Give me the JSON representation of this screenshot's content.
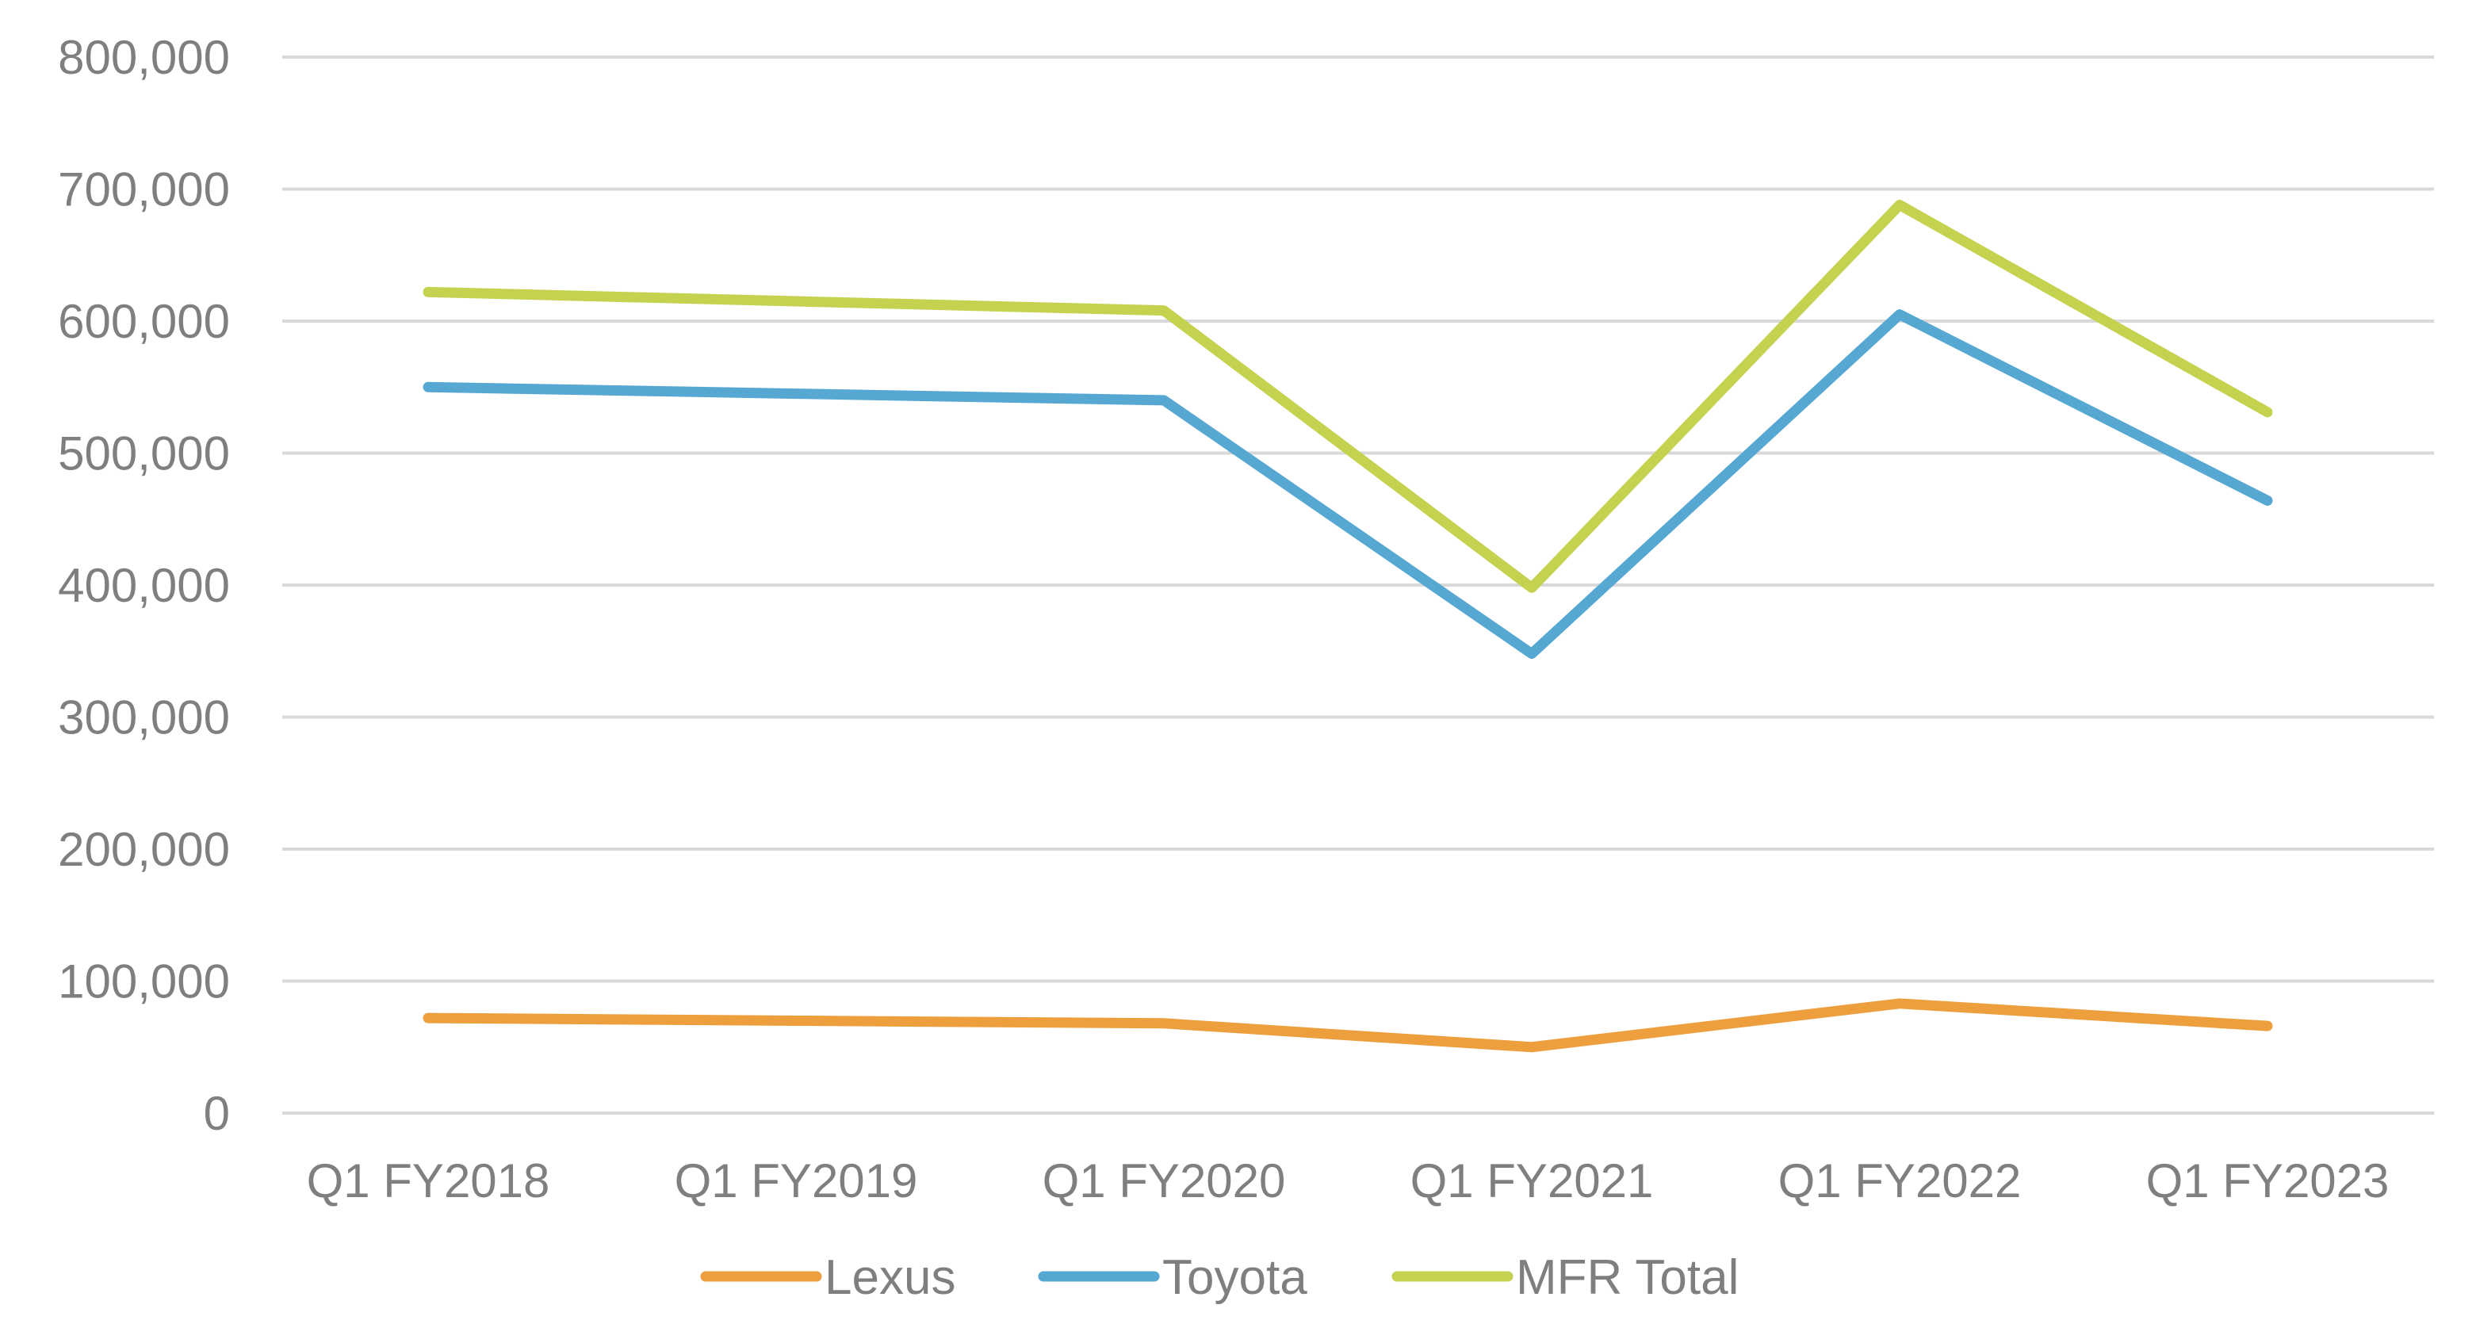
{
  "chart_data": {
    "type": "line",
    "title": "",
    "xlabel": "",
    "ylabel": "",
    "categories": [
      "Q1 FY2018",
      "Q1 FY2019",
      "Q1 FY2020",
      "Q1 FY2021",
      "Q1 FY2022",
      "Q1 FY2023"
    ],
    "ylim": [
      0,
      800000
    ],
    "yticks": [
      0,
      100000,
      200000,
      300000,
      400000,
      500000,
      600000,
      700000,
      800000
    ],
    "ytick_labels": [
      "0",
      "100,000",
      "200,000",
      "300,000",
      "400,000",
      "500,000",
      "600,000",
      "700,000",
      "800,000"
    ],
    "grid": true,
    "legend_position": "bottom",
    "series": [
      {
        "name": "Lexus",
        "color": "#ED9F3D",
        "values": [
          72000,
          70000,
          68000,
          50000,
          83000,
          66000
        ]
      },
      {
        "name": "Toyota",
        "color": "#56A8D3",
        "values": [
          550000,
          545000,
          540000,
          348000,
          605000,
          464000
        ]
      },
      {
        "name": "MFR Total",
        "color": "#C4D24F",
        "values": [
          622000,
          615000,
          608000,
          398000,
          688000,
          531000
        ]
      }
    ]
  }
}
